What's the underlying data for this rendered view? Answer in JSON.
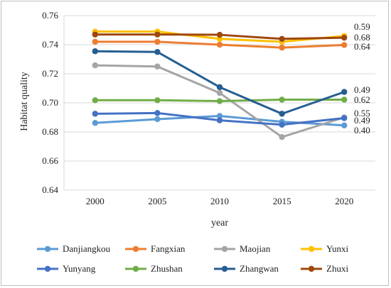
{
  "chart_data": {
    "type": "line",
    "title": "",
    "xlabel": "year",
    "ylabel": "Habitat quality",
    "x": [
      "2000",
      "2005",
      "2010",
      "2015",
      "2020"
    ],
    "ylim": [
      0.64,
      0.76
    ],
    "yticks": [
      "0.64",
      "0.66",
      "0.68",
      "0.70",
      "0.72",
      "0.74",
      "0.76"
    ],
    "grid": true,
    "legend_position": "bottom",
    "series": [
      {
        "name": "Danjiangkou",
        "color": "#5B9BD5",
        "values": [
          0.6862,
          0.6888,
          0.691,
          0.687,
          0.6845
        ]
      },
      {
        "name": "Fangxian",
        "color": "#ED7D31",
        "values": [
          0.742,
          0.742,
          0.74,
          0.738,
          0.7398
        ]
      },
      {
        "name": "Maojian",
        "color": "#A5A5A5",
        "values": [
          0.7258,
          0.725,
          0.7068,
          0.6765,
          0.69
        ]
      },
      {
        "name": "Yunxi",
        "color": "#FFC000",
        "values": [
          0.749,
          0.749,
          0.744,
          0.742,
          0.746
        ]
      },
      {
        "name": "Yunyang",
        "color": "#4472C4",
        "values": [
          0.6925,
          0.693,
          0.688,
          0.685,
          0.6895
        ]
      },
      {
        "name": "Zhushan",
        "color": "#70AD47",
        "values": [
          0.7018,
          0.7018,
          0.7012,
          0.7022,
          0.7022
        ]
      },
      {
        "name": "Zhangwan",
        "color": "#255E91",
        "values": [
          0.7355,
          0.735,
          0.7108,
          0.6925,
          0.7075
        ]
      },
      {
        "name": "Zhuxi",
        "color": "#9E480E",
        "values": [
          0.747,
          0.747,
          0.7468,
          0.744,
          0.7448
        ]
      }
    ],
    "end_labels": [
      "0.59",
      "0.68",
      "0.64",
      "0.49",
      "0.62",
      "0.55",
      "0.49",
      "0.40"
    ]
  }
}
